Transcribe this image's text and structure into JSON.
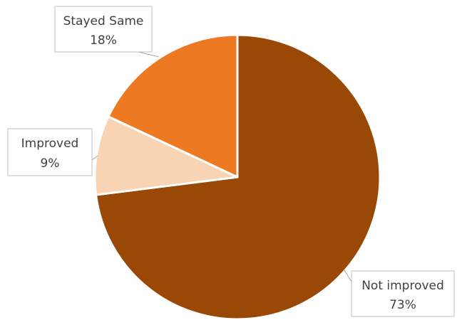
{
  "chart_data": {
    "type": "pie",
    "categories": [
      "Not improved",
      "Improved",
      "Stayed Same"
    ],
    "values": [
      73,
      9,
      18
    ],
    "data_labels": [
      {
        "name": "Not improved",
        "value": "73%"
      },
      {
        "name": "Improved",
        "value": "9%"
      },
      {
        "name": "Stayed Same",
        "value": "18%"
      }
    ],
    "colors": [
      "#994805",
      "#F8D3B4",
      "#ED7A23"
    ],
    "legend": "none"
  }
}
